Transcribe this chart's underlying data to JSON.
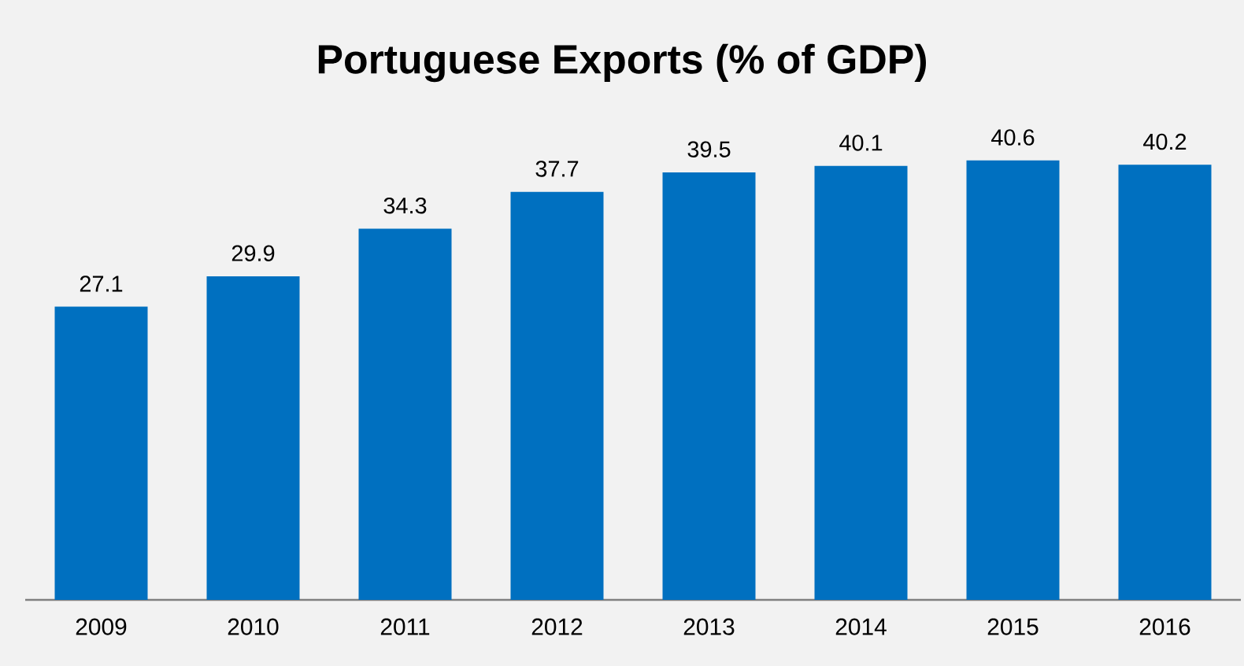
{
  "chart_data": {
    "type": "bar",
    "title": "Portuguese Exports (% of GDP)",
    "categories": [
      "2009",
      "2010",
      "2011",
      "2012",
      "2013",
      "2014",
      "2015",
      "2016"
    ],
    "values": [
      27.1,
      29.9,
      34.3,
      37.7,
      39.5,
      40.1,
      40.6,
      40.2
    ],
    "color": "#0070c0",
    "data_labels": true,
    "tick_labels": "x"
  }
}
